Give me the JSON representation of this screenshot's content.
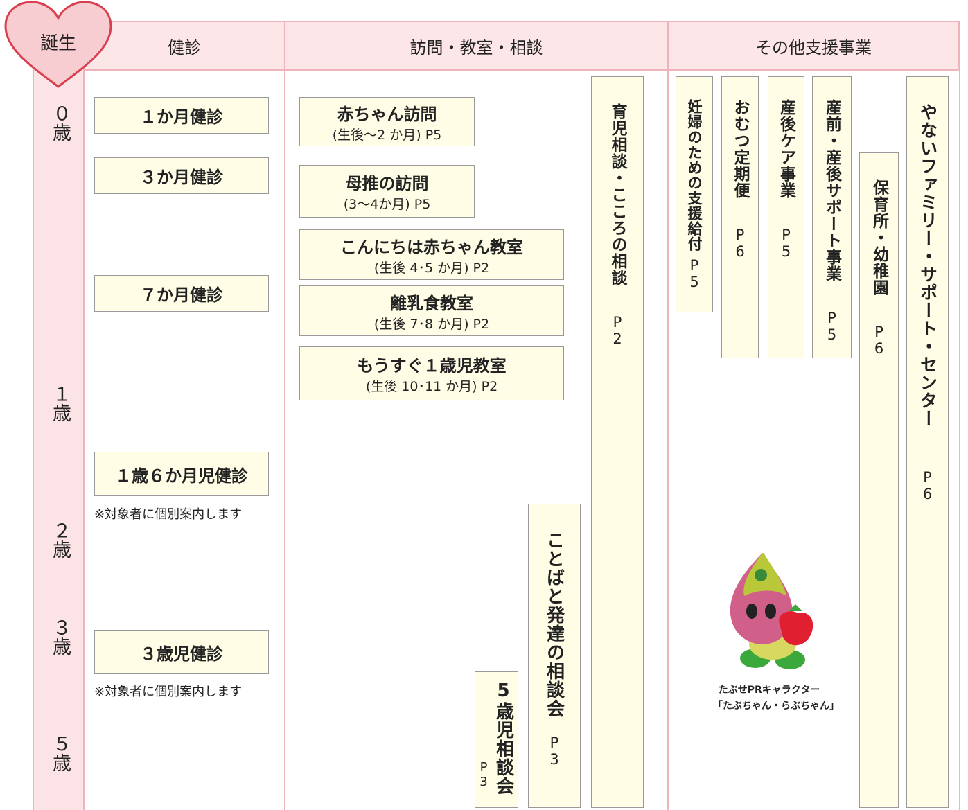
{
  "header": {
    "birth": "誕生",
    "columns": [
      "健診",
      "訪問・教室・相談",
      "その他支援事業"
    ]
  },
  "ages": [
    "０歳",
    "１歳",
    "２歳",
    "３歳",
    "５歳"
  ],
  "checkups": [
    {
      "label": "１か月健診"
    },
    {
      "label": "３か月健診"
    },
    {
      "label": "７か月健診"
    },
    {
      "label": "１歳６か月児健診",
      "note": "※対象者に個別案内します"
    },
    {
      "label": "３歳児健診",
      "note": "※対象者に個別案内します"
    }
  ],
  "visits": [
    {
      "title": "赤ちゃん訪問",
      "detail": "(生後～2 か月) P5"
    },
    {
      "title": "母推の訪問",
      "detail": "(3～4か月) P5"
    },
    {
      "title": "こんにちは赤ちゃん教室",
      "detail": "(生後 4･5 か月) P2"
    },
    {
      "title": "離乳食教室",
      "detail": "(生後 7･8 か月) P2"
    },
    {
      "title": "もうすぐ１歳児教室",
      "detail": "(生後 10･11 か月) P2"
    }
  ],
  "consultations": [
    {
      "title": "育児相談・こころの相談",
      "page": "P2"
    },
    {
      "title": "ことばと発達の相談会",
      "page": "P3"
    },
    {
      "title": "5歳児相談会",
      "page": "P3"
    }
  ],
  "support": [
    {
      "title": "妊婦のための支援給付",
      "page": "P5"
    },
    {
      "title": "おむつ定期便",
      "page": "P6"
    },
    {
      "title": "産後ケア事業",
      "page": "P5"
    },
    {
      "title": "産前・産後サポート事業",
      "page": "P5"
    },
    {
      "title": "保育所・幼稚園",
      "page": "P6"
    },
    {
      "title": "やないファミリー・サポート・センター",
      "page": "P6"
    }
  ],
  "mascot": {
    "caption": "たぶせPRキャラクター",
    "name": "「たぶちゃん・らぶちゃん」"
  }
}
